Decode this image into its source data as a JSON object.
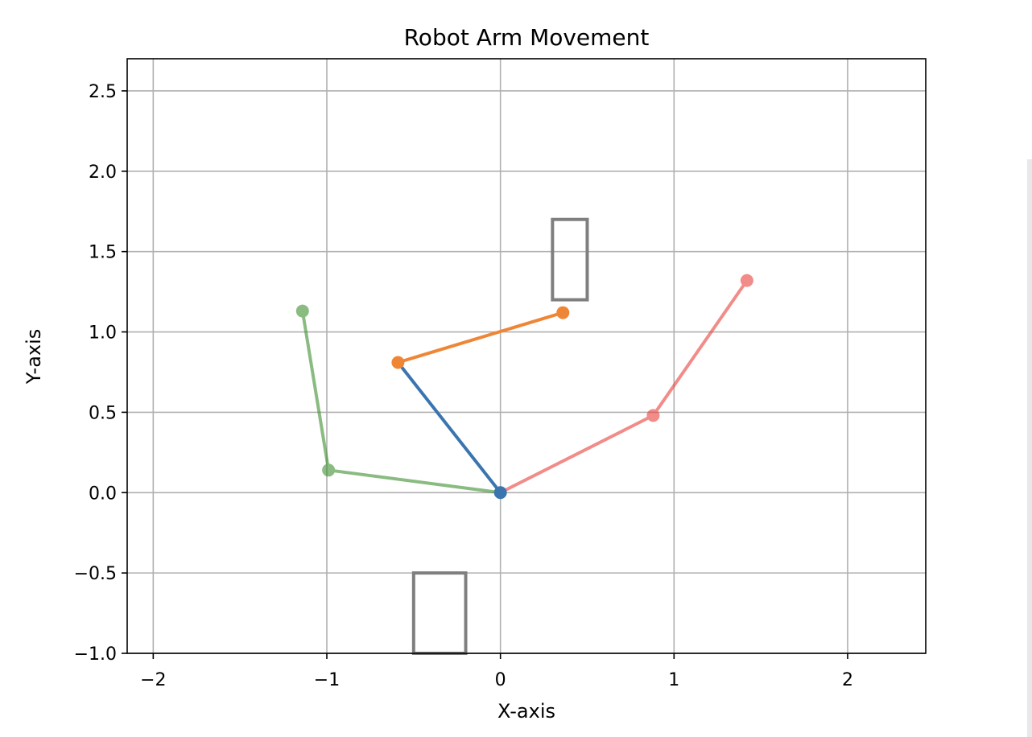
{
  "chart_data": {
    "type": "line",
    "title": "Robot Arm Movement",
    "xlabel": "X-axis",
    "ylabel": "Y-axis",
    "xlim": [
      -2.15,
      2.45
    ],
    "ylim": [
      -1.0,
      2.7
    ],
    "x_ticks": [
      -2,
      -1,
      0,
      1,
      2
    ],
    "x_tick_labels": [
      "−2",
      "−1",
      "0",
      "1",
      "2"
    ],
    "y_ticks": [
      -1.0,
      -0.5,
      0.0,
      0.5,
      1.0,
      1.5,
      2.0,
      2.5
    ],
    "y_tick_labels": [
      "−1.0",
      "−0.5",
      "0.0",
      "0.5",
      "1.0",
      "1.5",
      "2.0",
      "2.5"
    ],
    "grid": true,
    "arms": [
      {
        "links": [
          {
            "x": [
              0,
              -0.59
            ],
            "y": [
              0,
              0.81
            ],
            "color": "#3b75af"
          },
          {
            "x": [
              -0.59,
              0.36
            ],
            "y": [
              0.81,
              1.12
            ],
            "color": "#ef8636"
          }
        ],
        "joints": [
          {
            "x": 0,
            "y": 0,
            "color": "#3b75af"
          },
          {
            "x": -0.59,
            "y": 0.81,
            "color": "#ef8636"
          },
          {
            "x": 0.36,
            "y": 1.12,
            "color": "#ef8636"
          }
        ],
        "opacity": 1.0
      },
      {
        "links": [
          {
            "x": [
              0,
              0.88
            ],
            "y": [
              0,
              0.48
            ],
            "color": "#e8403a"
          },
          {
            "x": [
              0.88,
              1.42
            ],
            "y": [
              0.48,
              1.32
            ],
            "color": "#e8403a"
          }
        ],
        "joints": [
          {
            "x": 0.88,
            "y": 0.48,
            "color": "#e8403a"
          },
          {
            "x": 1.42,
            "y": 1.32,
            "color": "#e8403a"
          }
        ],
        "opacity": 0.6
      },
      {
        "links": [
          {
            "x": [
              0,
              -0.99
            ],
            "y": [
              0,
              0.14
            ],
            "color": "#3d8f2e"
          },
          {
            "x": [
              -0.99,
              -1.14
            ],
            "y": [
              0.14,
              1.13
            ],
            "color": "#3d8f2e"
          }
        ],
        "joints": [
          {
            "x": -0.99,
            "y": 0.14,
            "color": "#3d8f2e"
          },
          {
            "x": -1.14,
            "y": 1.13,
            "color": "#3d8f2e"
          }
        ],
        "opacity": 0.6
      }
    ],
    "obstacles": [
      {
        "x": 0.3,
        "y": 1.2,
        "width": 0.2,
        "height": 0.5,
        "color": "#7f7f7f"
      },
      {
        "x": -0.5,
        "y": -1.0,
        "width": 0.3,
        "height": 0.5,
        "color": "#7f7f7f"
      }
    ]
  }
}
